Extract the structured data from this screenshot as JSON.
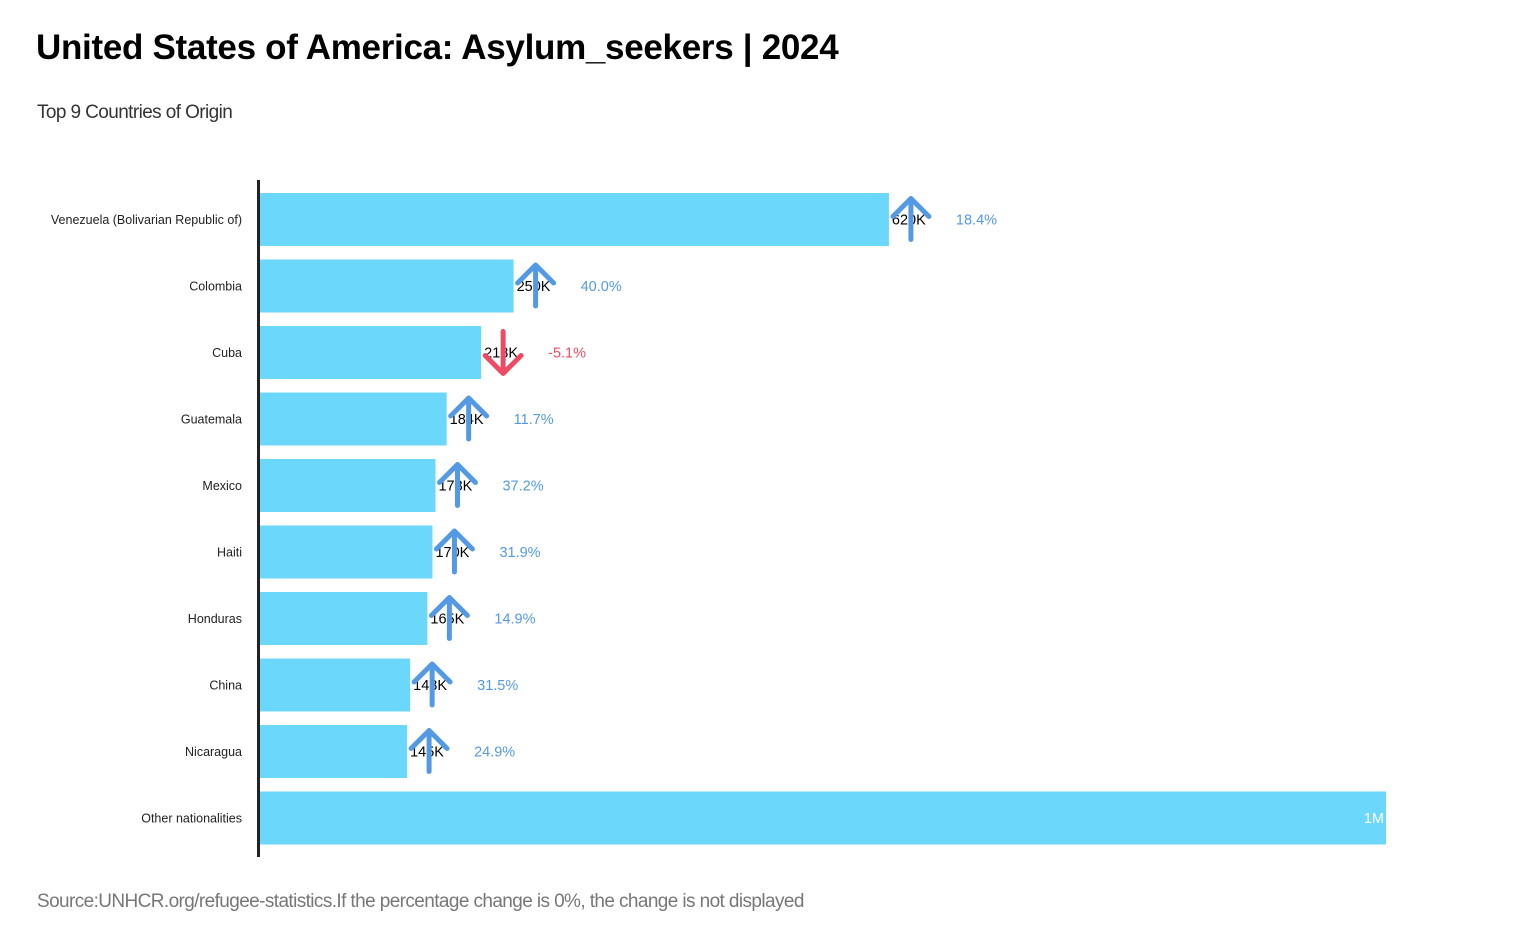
{
  "header": {
    "title": "United States of America: Asylum_seekers | 2024",
    "subtitle": "Top 9 Countries of Origin"
  },
  "footer": {
    "source": "Source:UNHCR.org/refugee-statistics.If the percentage change is 0%, the change is not displayed"
  },
  "colors": {
    "bar": "#6bd7fb",
    "axis": "#222222",
    "increase": "#5499e3",
    "decrease": "#ef4a63",
    "value_label": "#000000",
    "value_label_inside": "#ffffff"
  },
  "chart_data": {
    "type": "bar",
    "orientation": "horizontal",
    "title": "United States of America: Asylum_seekers | 2024",
    "subtitle": "Top 9 Countries of Origin",
    "xlabel": "",
    "ylabel": "",
    "grid": false,
    "xlim": [
      0,
      1110000
    ],
    "categories": [
      "Venezuela (Bolivarian Republic of)",
      "Colombia",
      "Cuba",
      "Guatemala",
      "Mexico",
      "Haiti",
      "Honduras",
      "China",
      "Nicaragua",
      "Other nationalities"
    ],
    "values": [
      620000,
      250000,
      218000,
      184000,
      173000,
      170000,
      165000,
      148000,
      145000,
      1110000
    ],
    "value_labels": [
      "620K",
      "250K",
      "218K",
      "184K",
      "173K",
      "170K",
      "165K",
      "148K",
      "145K",
      "1M"
    ],
    "pct_change": [
      18.4,
      40.0,
      -5.1,
      11.7,
      37.2,
      31.9,
      14.9,
      31.5,
      24.9,
      null
    ],
    "pct_labels": [
      "18.4%",
      "40.0%",
      "-5.1%",
      "11.7%",
      "37.2%",
      "31.9%",
      "14.9%",
      "31.5%",
      "24.9%",
      ""
    ],
    "direction": [
      "up",
      "up",
      "down",
      "up",
      "up",
      "up",
      "up",
      "up",
      "up",
      null
    ]
  }
}
